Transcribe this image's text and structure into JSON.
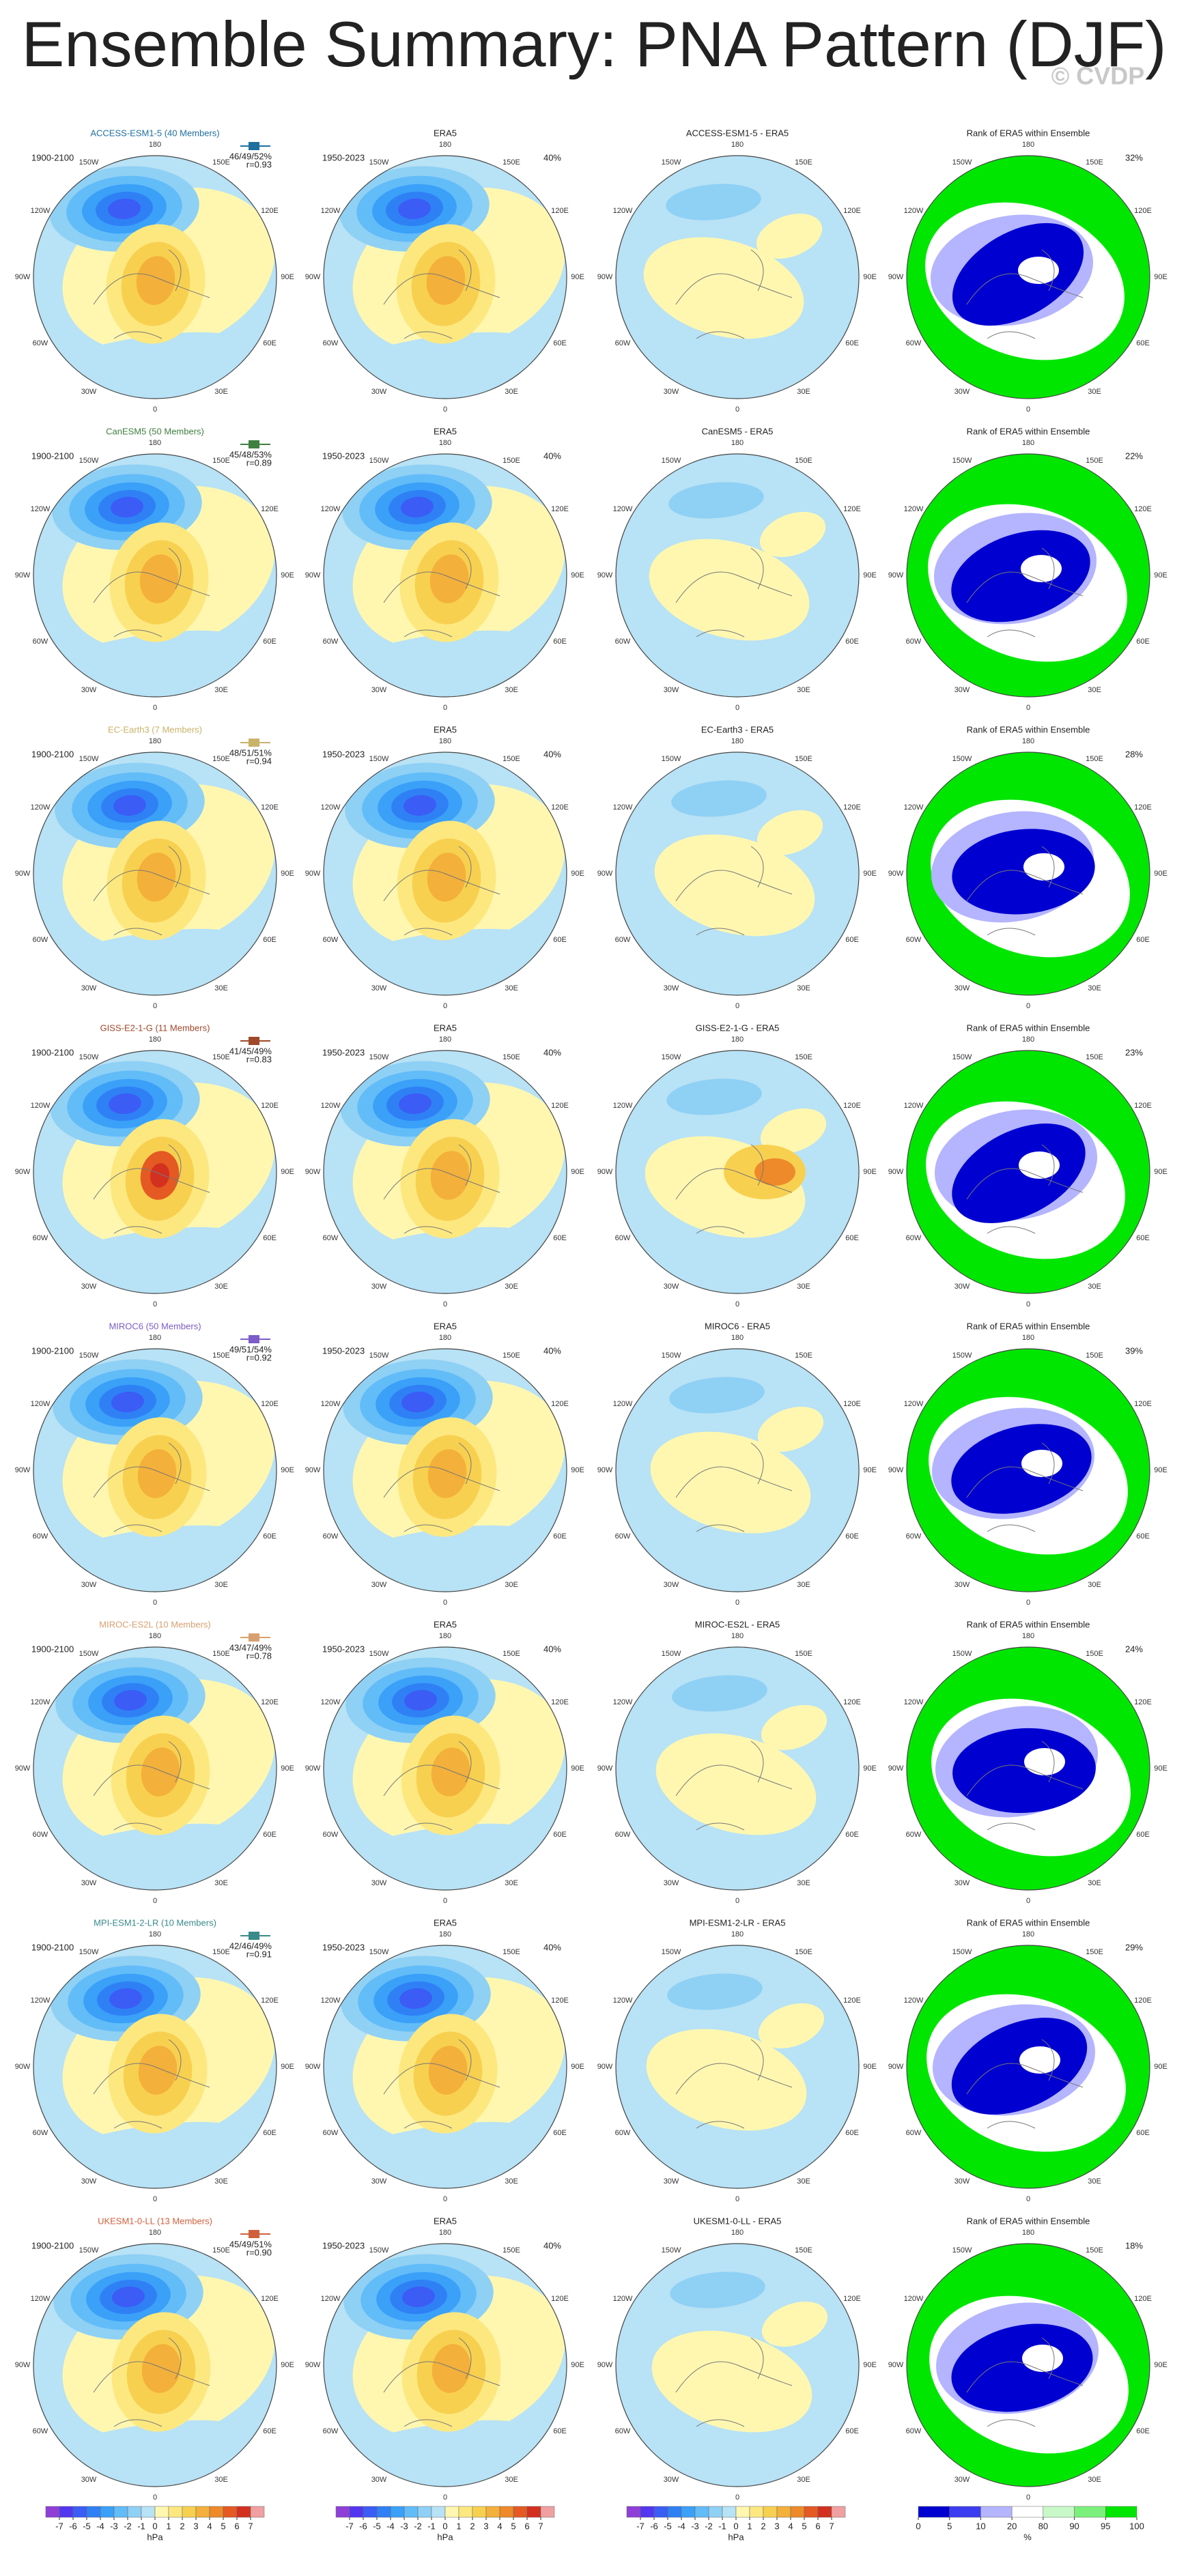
{
  "title": "Ensemble Summary: PNA Pattern (DJF)",
  "watermark": "© CVDP",
  "model_period": "1900-2100",
  "era5_title": "ERA5",
  "era5_period": "1950-2023",
  "era5_pct": "40%",
  "rank_title": "Rank of ERA5 within Ensemble",
  "rows": [
    {
      "title": "ACCESS-ESM1-5 (40 Members)",
      "color": "#1f6f9f",
      "stats": "46/49/52%",
      "corr": "r=0.93",
      "diff_title": "ACCESS-ESM1-5 - ERA5",
      "rank_pct": "32%"
    },
    {
      "title": "CanESM5 (50 Members)",
      "color": "#3f7f3f",
      "stats": "45/48/53%",
      "corr": "r=0.89",
      "diff_title": "CanESM5 - ERA5",
      "rank_pct": "22%"
    },
    {
      "title": "EC-Earth3 (7 Members)",
      "color": "#c9b26a",
      "stats": "48/51/51%",
      "corr": "r=0.94",
      "diff_title": "EC-Earth3 - ERA5",
      "rank_pct": "28%"
    },
    {
      "title": "GISS-E2-1-G (11 Members)",
      "color": "#a0482a",
      "stats": "41/45/49%",
      "corr": "r=0.83",
      "diff_title": "GISS-E2-1-G - ERA5",
      "rank_pct": "23%"
    },
    {
      "title": "MIROC6 (50 Members)",
      "color": "#7b5cc8",
      "stats": "49/51/54%",
      "corr": "r=0.92",
      "diff_title": "MIROC6 - ERA5",
      "rank_pct": "39%"
    },
    {
      "title": "MIROC-ES2L (10 Members)",
      "color": "#d8a070",
      "stats": "43/47/49%",
      "corr": "r=0.78",
      "diff_title": "MIROC-ES2L - ERA5",
      "rank_pct": "24%"
    },
    {
      "title": "MPI-ESM1-2-LR (10 Members)",
      "color": "#3a8a8a",
      "stats": "42/46/49%",
      "corr": "r=0.91",
      "diff_title": "MPI-ESM1-2-LR - ERA5",
      "rank_pct": "29%"
    },
    {
      "title": "UKESM1-0-LL (13 Members)",
      "color": "#d0603c",
      "stats": "45/49/51%",
      "corr": "r=0.90",
      "diff_title": "UKESM1-0-LL - ERA5",
      "rank_pct": "18%"
    }
  ],
  "lon_labels": [
    "180",
    "150E",
    "120E",
    "90E",
    "60E",
    "30E",
    "0",
    "30W",
    "60W",
    "90W",
    "120W",
    "150W"
  ],
  "anomaly_colorbar": {
    "ticks": [
      -7,
      -6,
      -5,
      -4,
      -3,
      -2,
      -1,
      0,
      1,
      2,
      3,
      4,
      5,
      6,
      7
    ],
    "units": "hPa",
    "colors": [
      "#8f3fd8",
      "#5236f0",
      "#3b5cf5",
      "#2f80f5",
      "#3aa0f8",
      "#62bcf8",
      "#8fd0f5",
      "#b8e2f5",
      "#fff7b0",
      "#fde880",
      "#f8d050",
      "#f3b03a",
      "#ee8a2a",
      "#e45a22",
      "#d43020",
      "#f0a0a0"
    ]
  },
  "rank_colorbar": {
    "ticks": [
      0,
      5,
      10,
      20,
      80,
      90,
      95,
      100
    ],
    "units": "%",
    "colors": [
      "#0000d0",
      "#3c3cf0",
      "#b4b4ff",
      "#ffffff",
      "#c8f8c8",
      "#7cf07c",
      "#00e600"
    ]
  }
}
